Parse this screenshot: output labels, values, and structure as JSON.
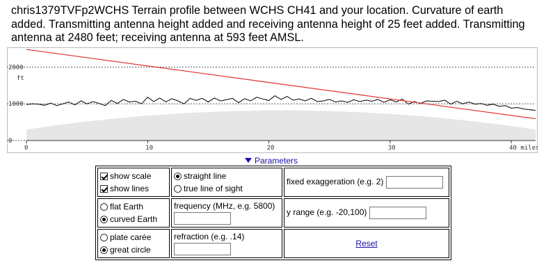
{
  "header": {
    "text": "chris1379TVFp2WCHS  Terrain profile between WCHS CH41 and your location. Curvature of earth added. Transmitting antenna height added and receiving antenna height of 25 feet added. Transmitting antenna at 2480 feet; receiving antenna at 593 feet AMSL."
  },
  "chart_data": {
    "type": "line",
    "title": "",
    "xlabel": "miles",
    "ylabel": "ft",
    "xlim": [
      0,
      42
    ],
    "ylim": [
      0,
      2500
    ],
    "x_ticks": [
      0,
      10,
      20,
      30,
      40
    ],
    "x_tick_labels": [
      "0",
      "10",
      "20",
      "30",
      "40 miles"
    ],
    "y_ticks": [
      0,
      1000,
      2000
    ],
    "y_tick_labels": [
      "0",
      "1000",
      "2000"
    ],
    "grid": true,
    "series": [
      {
        "role": "terrain",
        "color": "#000000",
        "x": [
          0,
          0.5,
          1,
          1.5,
          2,
          2.5,
          3,
          3.5,
          4,
          4.5,
          5,
          5.5,
          6,
          6.5,
          7,
          7.5,
          8,
          8.5,
          9,
          9.5,
          10,
          10.5,
          11,
          11.5,
          12,
          12.5,
          13,
          13.5,
          14,
          14.5,
          15,
          15.5,
          16,
          16.5,
          17,
          17.5,
          18,
          18.5,
          19,
          19.5,
          20,
          20.5,
          21,
          21.5,
          22,
          22.5,
          23,
          23.5,
          24,
          24.5,
          25,
          25.5,
          26,
          26.5,
          27,
          27.5,
          28,
          28.5,
          29,
          29.5,
          30,
          30.5,
          31,
          31.5,
          32,
          32.5,
          33,
          33.5,
          34,
          34.5,
          35,
          35.5,
          36,
          36.5,
          37,
          37.5,
          38,
          38.5,
          39,
          39.5,
          40,
          40.5,
          41,
          41.5,
          42
        ],
        "y": [
          980,
          1000,
          990,
          960,
          1020,
          950,
          1000,
          1050,
          970,
          1080,
          1000,
          1060,
          1010,
          950,
          1090,
          1010,
          1120,
          1050,
          1070,
          1000,
          1180,
          1060,
          1160,
          1050,
          1140,
          1080,
          1000,
          1150,
          1090,
          1150,
          1050,
          1160,
          1080,
          1110,
          1150,
          1030,
          1140,
          1080,
          1180,
          1130,
          1090,
          1220,
          1120,
          1200,
          1100,
          1130,
          1080,
          1150,
          1060,
          1080,
          1120,
          1050,
          1080,
          1040,
          1110,
          1060,
          1100,
          1070,
          1120,
          1040,
          1110,
          1050,
          1130,
          990,
          1060,
          1010,
          1080,
          1070,
          1060,
          1100,
          990,
          1070,
          1000,
          1050,
          990,
          1010,
          960,
          990,
          930,
          950,
          880,
          900,
          860,
          840,
          820
        ]
      },
      {
        "role": "line of sight",
        "color": "#e03030",
        "x": [
          0,
          42
        ],
        "y": [
          2480,
          593
        ]
      }
    ]
  },
  "parameters": {
    "toggle_label": "Parameters",
    "show_scale": "show scale",
    "show_lines": "show lines",
    "straight_line": "straight line",
    "true_los": "true line of sight",
    "fixed_exag": "fixed exaggeration (e.g. 2)",
    "flat_earth": "flat Earth",
    "curved_earth": "curved Earth",
    "frequency": "frequency (MHz, e.g. 5800)",
    "y_range": "y range (e.g. -20,100)",
    "plate_carree": "plate carée",
    "great_circle": "great circle",
    "refraction": "refraction (e.g. .14)",
    "reset": "Reset"
  }
}
